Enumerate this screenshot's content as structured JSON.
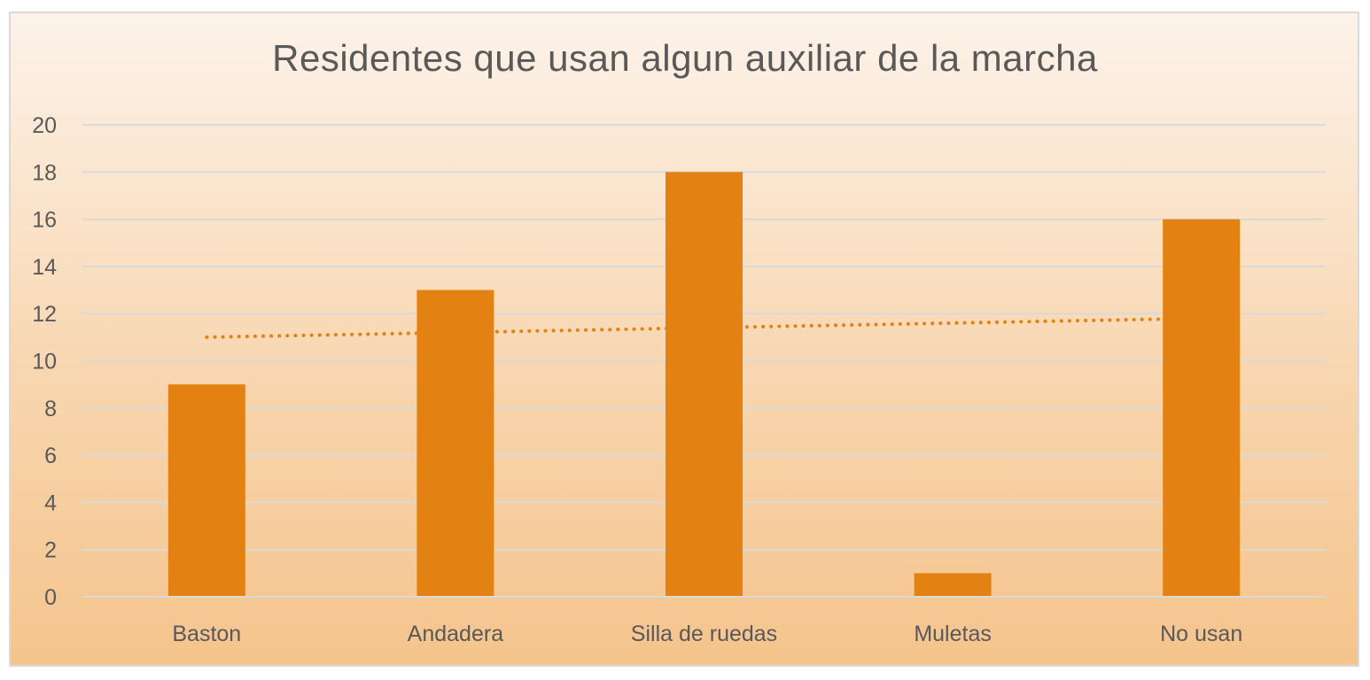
{
  "chart_data": {
    "type": "bar",
    "title": "Residentes que usan algun auxiliar de la marcha",
    "categories": [
      "Baston",
      "Andadera",
      "Silla de ruedas",
      "Muletas",
      "No usan"
    ],
    "series": [
      {
        "values": [
          9,
          13,
          18,
          1,
          16
        ]
      }
    ],
    "trendline": {
      "type": "linear",
      "style": "dotted",
      "start": 11.0,
      "end": 11.8
    },
    "ylim": [
      0,
      20
    ],
    "yticks": [
      0,
      2,
      4,
      6,
      8,
      10,
      12,
      14,
      16,
      18,
      20
    ],
    "xlabel": "",
    "ylabel": "",
    "grid": true,
    "legend": "none",
    "colors": {
      "bar": "#e38212",
      "trendline": "#e38212",
      "grid": "#d9d9d9",
      "text": "#595959"
    }
  }
}
